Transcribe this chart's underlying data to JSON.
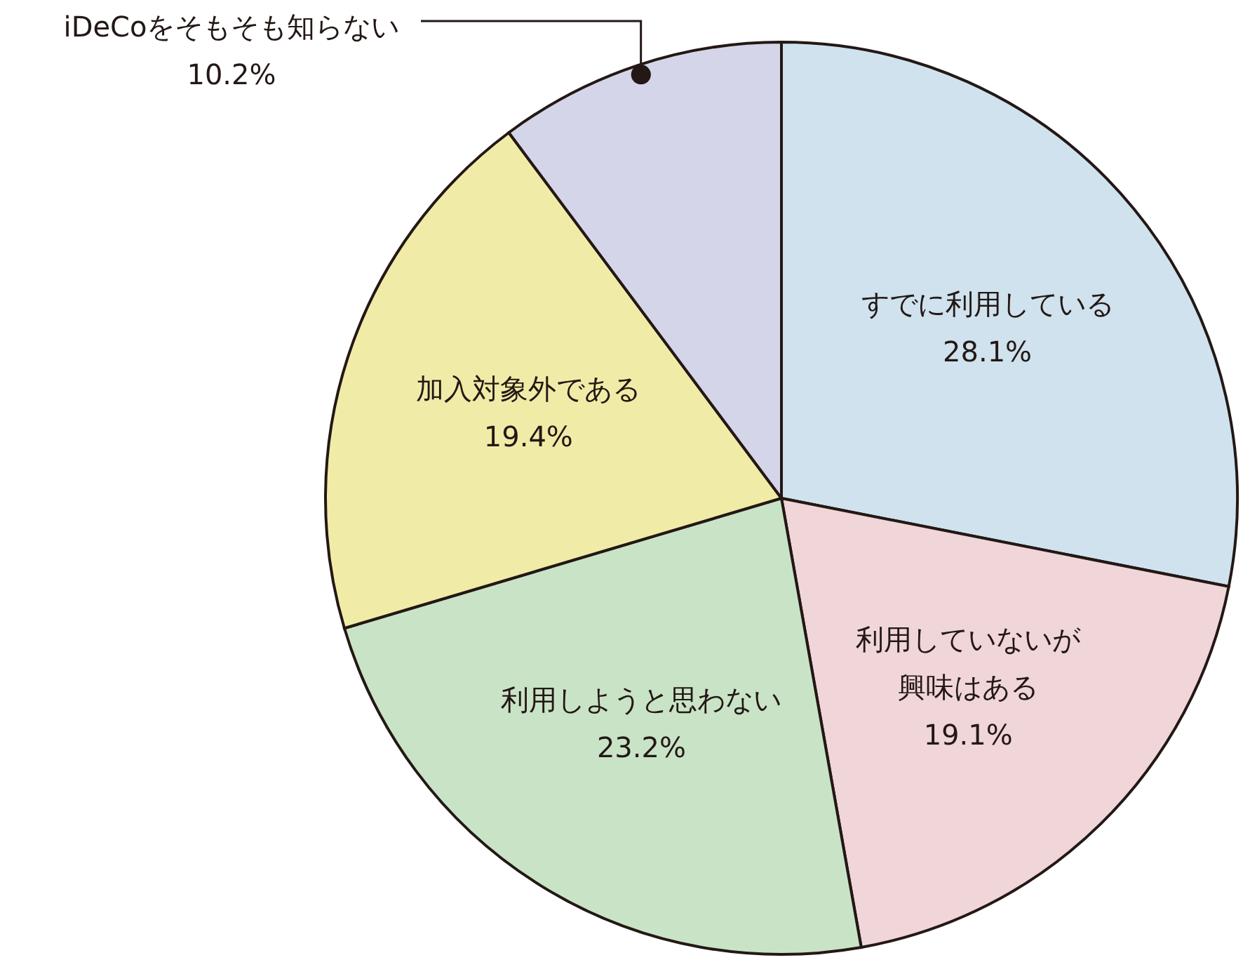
{
  "chart_data": {
    "type": "pie",
    "categories": [
      "すでに利用している",
      "利用していないが興味はある",
      "利用しようと思わない",
      "加入対象外である",
      "iDeCoをそもそも知らない"
    ],
    "values": [
      28.1,
      19.1,
      23.2,
      19.4,
      10.2
    ],
    "colors": [
      "#cfe2ee",
      "#f0d5d9",
      "#c9e3c6",
      "#f0eca8",
      "#d5d5ea"
    ],
    "value_labels": [
      "28.1%",
      "19.1%",
      "23.2%",
      "19.4%",
      "10.2%"
    ]
  }
}
